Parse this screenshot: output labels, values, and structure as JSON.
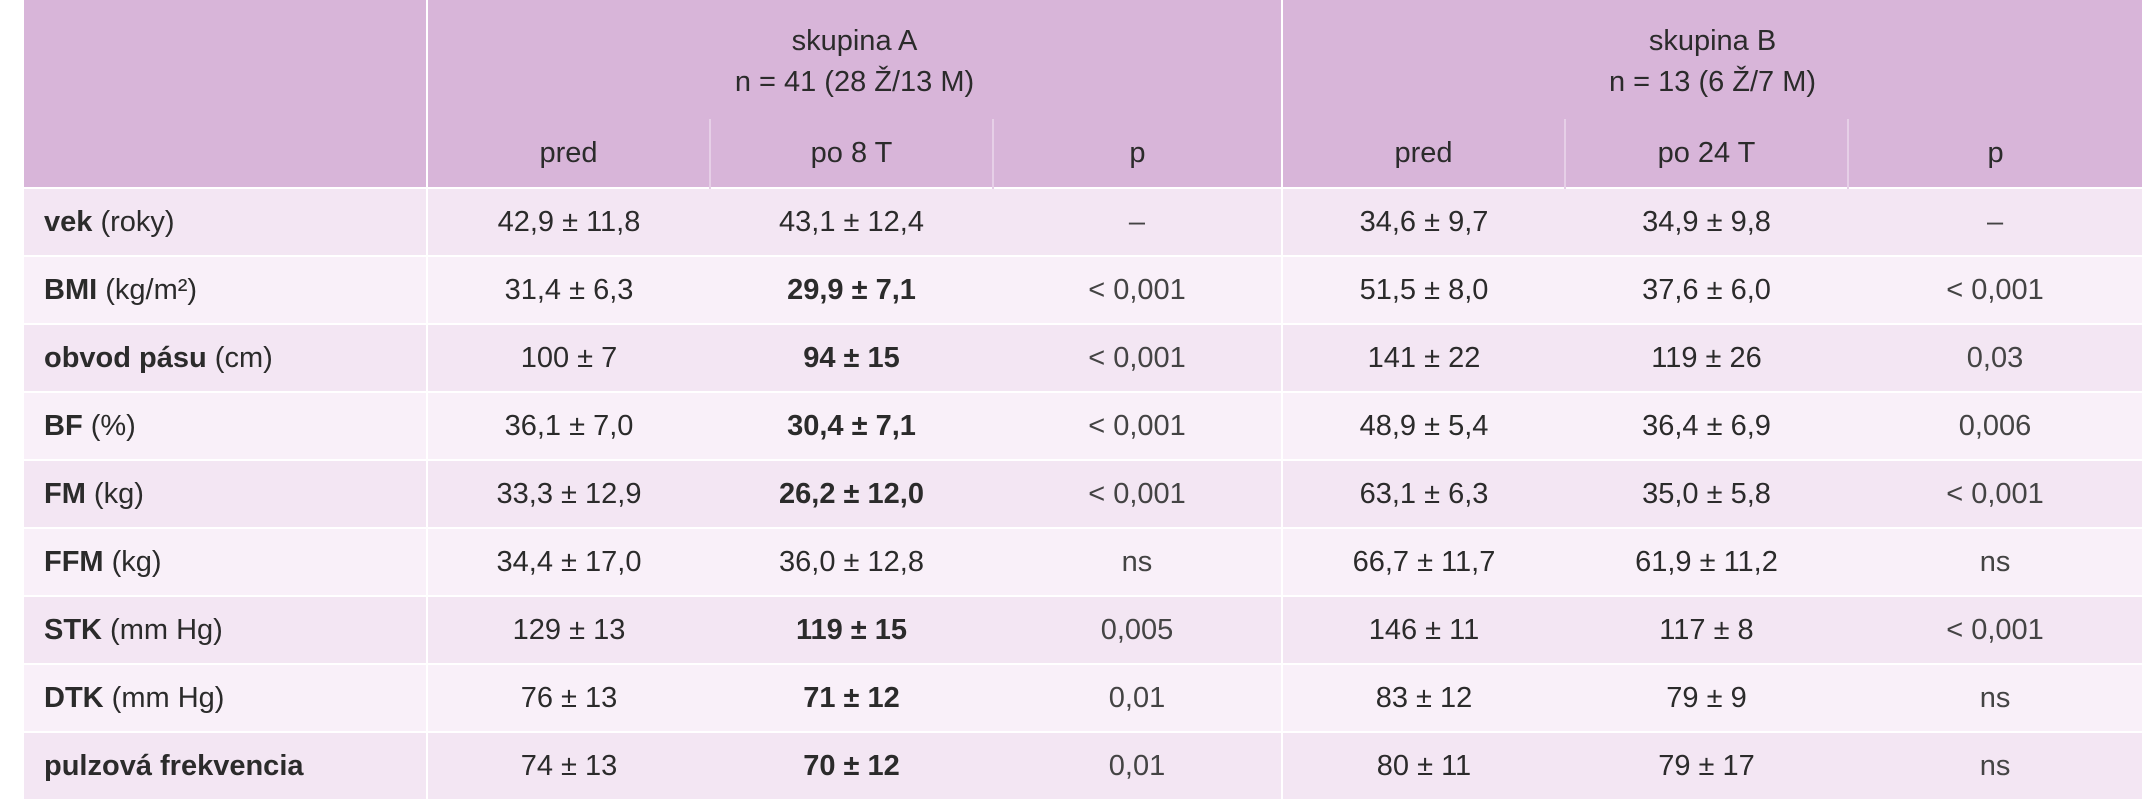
{
  "header": {
    "group_a_title": "skupina A",
    "group_a_n": "n = 41 (28 Ž/13 M)",
    "group_b_title": "skupina B",
    "group_b_n": "n = 13 (6 Ž/7 M)",
    "sub_headers": [
      "pred",
      "po 8 T",
      "p",
      "pred",
      "po 24 T",
      "p"
    ]
  },
  "rows": [
    {
      "label": "vek",
      "unit": " (roky)",
      "a_pred": "42,9 ± 11,8",
      "a_po": "43,1 ± 12,4",
      "a_po_bold": false,
      "a_p": "–",
      "b_pred": "34,6 ± 9,7",
      "b_po": "34,9 ± 9,8",
      "b_p": "–"
    },
    {
      "label": "BMI",
      "unit": " (kg/m²)",
      "a_pred": "31,4 ± 6,3",
      "a_po": "29,9 ± 7,1",
      "a_po_bold": true,
      "a_p": "< 0,001",
      "b_pred": "51,5 ± 8,0",
      "b_po": "37,6 ± 6,0",
      "b_p": "< 0,001"
    },
    {
      "label": "obvod pásu",
      "unit": " (cm)",
      "a_pred": "100 ± 7",
      "a_po": "94 ± 15",
      "a_po_bold": true,
      "a_p": "< 0,001",
      "b_pred": "141 ± 22",
      "b_po": "119 ± 26",
      "b_p": "0,03"
    },
    {
      "label": "BF",
      "unit": " (%)",
      "a_pred": "36,1 ± 7,0",
      "a_po": "30,4 ± 7,1",
      "a_po_bold": true,
      "a_p": "< 0,001",
      "b_pred": "48,9 ± 5,4",
      "b_po": "36,4 ± 6,9",
      "b_p": "0,006"
    },
    {
      "label": "FM",
      "unit": " (kg)",
      "a_pred": "33,3 ± 12,9",
      "a_po": "26,2 ± 12,0",
      "a_po_bold": true,
      "a_p": "< 0,001",
      "b_pred": "63,1 ± 6,3",
      "b_po": "35,0 ± 5,8",
      "b_p": "< 0,001"
    },
    {
      "label": "FFM",
      "unit": " (kg)",
      "a_pred": "34,4 ± 17,0",
      "a_po": "36,0 ± 12,8",
      "a_po_bold": false,
      "a_p": "ns",
      "b_pred": "66,7 ± 11,7",
      "b_po": "61,9 ± 11,2",
      "b_p": "ns"
    },
    {
      "label": "STK",
      "unit": " (mm Hg)",
      "a_pred": "129 ± 13",
      "a_po": "119 ± 15",
      "a_po_bold": true,
      "a_p": "0,005",
      "b_pred": "146 ± 11",
      "b_po": "117 ± 8",
      "b_p": "< 0,001"
    },
    {
      "label": "DTK",
      "unit": " (mm Hg)",
      "a_pred": "76 ± 13",
      "a_po": "71 ± 12",
      "a_po_bold": true,
      "a_p": "0,01",
      "b_pred": "83 ± 12",
      "b_po": "79 ± 9",
      "b_p": "ns"
    },
    {
      "label": "pulzová frekvencia",
      "unit": "",
      "a_pred": "74 ± 13",
      "a_po": "70 ± 12",
      "a_po_bold": true,
      "a_p": "0,01",
      "b_pred": "80 ± 11",
      "b_po": "79 ± 17",
      "b_p": "ns"
    }
  ]
}
